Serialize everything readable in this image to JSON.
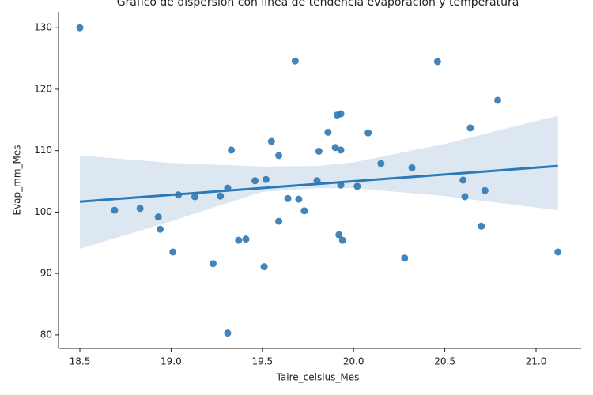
{
  "chart_data": {
    "type": "scatter",
    "title": "Gráfico de dispersión con línea de tendencia evaporación y temperatura",
    "xlabel": "Taire_celsius_Mes",
    "ylabel": "Evap_mm_Mes",
    "x": [
      18.5,
      19.68,
      20.46,
      20.79,
      19.93,
      19.91,
      19.86,
      20.08,
      20.64,
      19.55,
      19.33,
      19.9,
      19.93,
      19.81,
      19.59,
      20.15,
      20.32,
      19.46,
      19.52,
      19.8,
      20.6,
      19.93,
      20.02,
      19.31,
      20.72,
      19.04,
      19.13,
      19.27,
      19.64,
      19.7,
      20.61,
      18.69,
      18.83,
      19.73,
      18.93,
      19.59,
      18.94,
      20.7,
      19.92,
      19.37,
      19.41,
      19.94,
      19.01,
      21.12,
      20.28,
      19.23,
      19.51,
      19.31
    ],
    "values": [
      130.0,
      124.6,
      124.5,
      118.2,
      116.0,
      115.8,
      113.0,
      112.9,
      113.7,
      111.5,
      110.1,
      110.5,
      110.1,
      109.9,
      109.2,
      107.9,
      107.2,
      105.1,
      105.3,
      105.1,
      105.2,
      104.4,
      104.2,
      103.9,
      103.5,
      102.8,
      102.5,
      102.6,
      102.2,
      102.1,
      102.5,
      100.3,
      100.6,
      100.2,
      99.2,
      98.5,
      97.2,
      97.7,
      96.3,
      95.4,
      95.6,
      95.4,
      93.5,
      93.5,
      92.5,
      91.6,
      91.1,
      80.3
    ],
    "color": "#2f78b3",
    "trend": {
      "x": [
        18.5,
        21.12
      ],
      "values": [
        101.7,
        107.5
      ],
      "color": "#2a7ab9"
    },
    "ci": {
      "x": [
        18.5,
        19.0,
        19.5,
        19.8,
        20.0,
        20.5,
        21.12
      ],
      "upper": [
        109.2,
        108.0,
        107.4,
        107.5,
        108.1,
        111.1,
        115.7
      ],
      "lower": [
        94.0,
        98.5,
        103.3,
        103.9,
        103.9,
        102.6,
        100.3
      ],
      "color": "#dce7f2"
    },
    "xlim": [
      18.383,
      21.247
    ],
    "ylim": [
      77.8,
      132.6
    ],
    "xticks": [
      {
        "value": 18.5,
        "label": "18.5"
      },
      {
        "value": 19.0,
        "label": "19.0"
      },
      {
        "value": 19.5,
        "label": "19.5"
      },
      {
        "value": 20.0,
        "label": "20.0"
      },
      {
        "value": 20.5,
        "label": "20.5"
      },
      {
        "value": 21.0,
        "label": "21.0"
      }
    ],
    "yticks": [
      80,
      90,
      100,
      110,
      120,
      130
    ]
  }
}
